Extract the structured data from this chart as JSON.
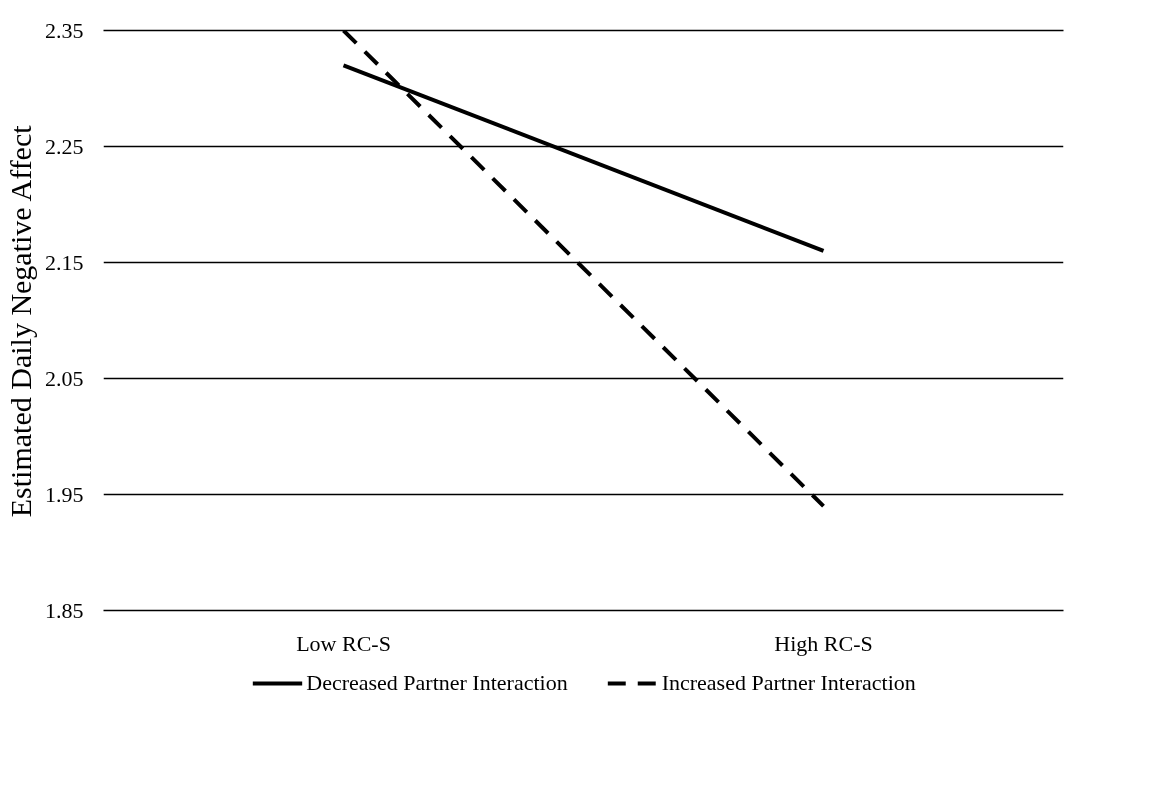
{
  "chart_data": {
    "type": "line",
    "ylabel": "Estimated Daily Negative Affect",
    "categories": [
      "Low RC-S",
      "High RC-S"
    ],
    "series": [
      {
        "name": "Decreased Partner Interaction",
        "color": "#000000",
        "values": [
          2.32,
          2.16
        ],
        "line_style": "solid"
      },
      {
        "name": "Increased Partner Interaction",
        "color": "#000000",
        "values": [
          2.35,
          1.94
        ],
        "line_style": "dashed"
      }
    ],
    "ylim": [
      1.85,
      2.35
    ],
    "yticks": [
      1.85,
      1.95,
      2.05,
      2.15,
      2.25,
      2.35
    ],
    "grid": "y",
    "legend": "bottom",
    "marker": "none"
  }
}
